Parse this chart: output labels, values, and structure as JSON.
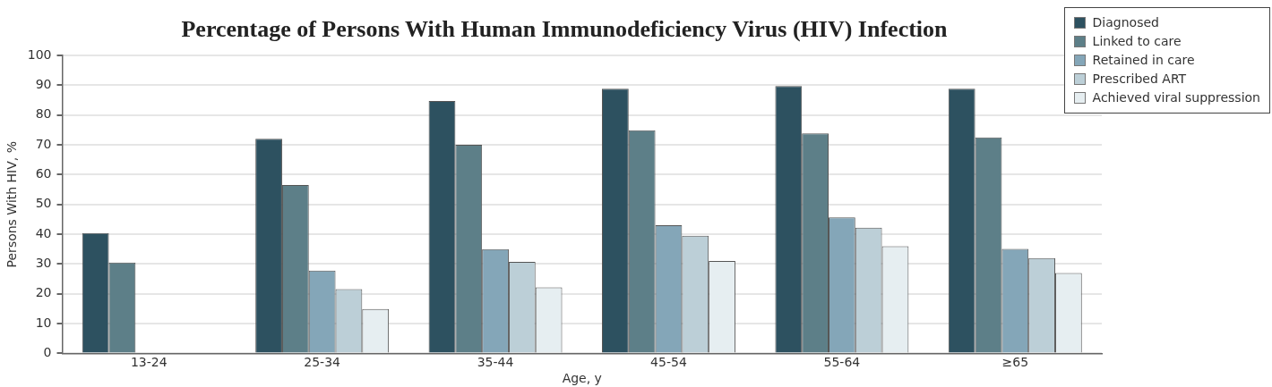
{
  "chart_data": {
    "type": "bar",
    "title": "Percentage of Persons With Human Immunodeficiency Virus (HIV) Infection",
    "xlabel": "Age, y",
    "ylabel": "Persons With HIV, %",
    "categories": [
      "13-24",
      "25-34",
      "35-44",
      "45-54",
      "55-64",
      "≥65"
    ],
    "series": [
      {
        "name": "Diagnosed",
        "color": "#2d5160",
        "values": [
          40.4,
          72,
          84.7,
          88.8,
          89.7,
          88.8
        ]
      },
      {
        "name": "Linked to care",
        "color": "#5d7f88",
        "values": [
          30.5,
          56.5,
          70,
          74.9,
          73.8,
          72.5
        ]
      },
      {
        "name": "Retained in care",
        "color": "#84a6b8",
        "values": [
          null,
          27.8,
          35,
          43,
          45.6,
          35.1
        ]
      },
      {
        "name": "Prescribed ART",
        "color": "#bccfd7",
        "values": [
          null,
          21.6,
          30.7,
          39.5,
          42.2,
          32
        ]
      },
      {
        "name": "Achieved viral suppression",
        "color": "#e6eef1",
        "values": [
          null,
          14.9,
          22.2,
          31,
          36,
          27
        ]
      }
    ],
    "ylim": [
      0,
      100
    ],
    "yticks": [
      0,
      10,
      20,
      30,
      40,
      50,
      60,
      70,
      80,
      90,
      100
    ],
    "grid": "y",
    "legend": "top right"
  }
}
